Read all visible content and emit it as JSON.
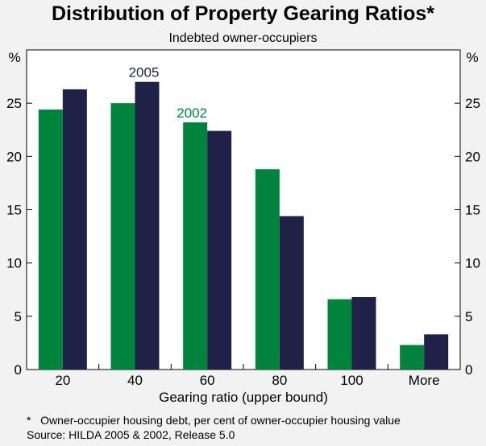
{
  "chart_data": {
    "type": "bar",
    "title": "Distribution of Property Gearing Ratios*",
    "subtitle": "Indebted owner-occupiers",
    "xlabel": "Gearing ratio (upper bound)",
    "ylabel_left": "%",
    "ylabel_right": "%",
    "ylim": [
      0,
      30
    ],
    "yticks": [
      "0",
      "5",
      "10",
      "15",
      "20",
      "25"
    ],
    "categories": [
      "20",
      "40",
      "60",
      "80",
      "100",
      "More"
    ],
    "series": [
      {
        "name": "2002",
        "color": "#00843d",
        "values": [
          24.4,
          25.0,
          23.2,
          18.8,
          6.6,
          2.3
        ]
      },
      {
        "name": "2005",
        "color": "#1f2147",
        "values": [
          26.3,
          27.0,
          22.4,
          14.4,
          6.8,
          3.3
        ]
      }
    ],
    "footnote": "*   Owner-occupier housing debt, per cent of owner-occupier housing value",
    "source": "Source: HILDA 2005 & 2002, Release 5.0"
  }
}
